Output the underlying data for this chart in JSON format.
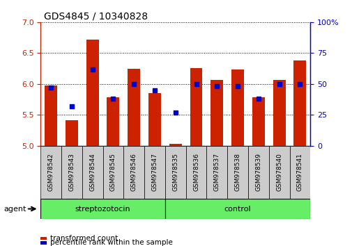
{
  "title": "GDS4845 / 10340828",
  "samples": [
    "GSM978542",
    "GSM978543",
    "GSM978544",
    "GSM978545",
    "GSM978546",
    "GSM978547",
    "GSM978535",
    "GSM978536",
    "GSM978537",
    "GSM978538",
    "GSM978539",
    "GSM978540",
    "GSM978541"
  ],
  "red_values": [
    5.98,
    5.42,
    6.72,
    5.78,
    6.25,
    5.85,
    5.03,
    6.26,
    6.07,
    6.23,
    5.78,
    6.07,
    6.38
  ],
  "blue_values": [
    47,
    32,
    62,
    38,
    50,
    45,
    27,
    50,
    48,
    48,
    38,
    50,
    50
  ],
  "red_color": "#cc2200",
  "blue_color": "#0000cc",
  "ylim_left": [
    5.0,
    7.0
  ],
  "ylim_right": [
    0,
    100
  ],
  "yticks_left": [
    5.0,
    5.5,
    6.0,
    6.5,
    7.0
  ],
  "yticks_right": [
    0,
    25,
    50,
    75,
    100
  ],
  "ytick_labels_right": [
    "0",
    "25",
    "50",
    "75",
    "100%"
  ],
  "group1_label": "streptozotocin",
  "group2_label": "control",
  "n_group1": 6,
  "n_group2": 7,
  "agent_label": "agent",
  "legend1": "transformed count",
  "legend2": "percentile rank within the sample",
  "bar_width": 0.6,
  "tick_area_color": "#cccccc",
  "group_area_color": "#66ee66",
  "group_area_color_dark": "#44cc44"
}
